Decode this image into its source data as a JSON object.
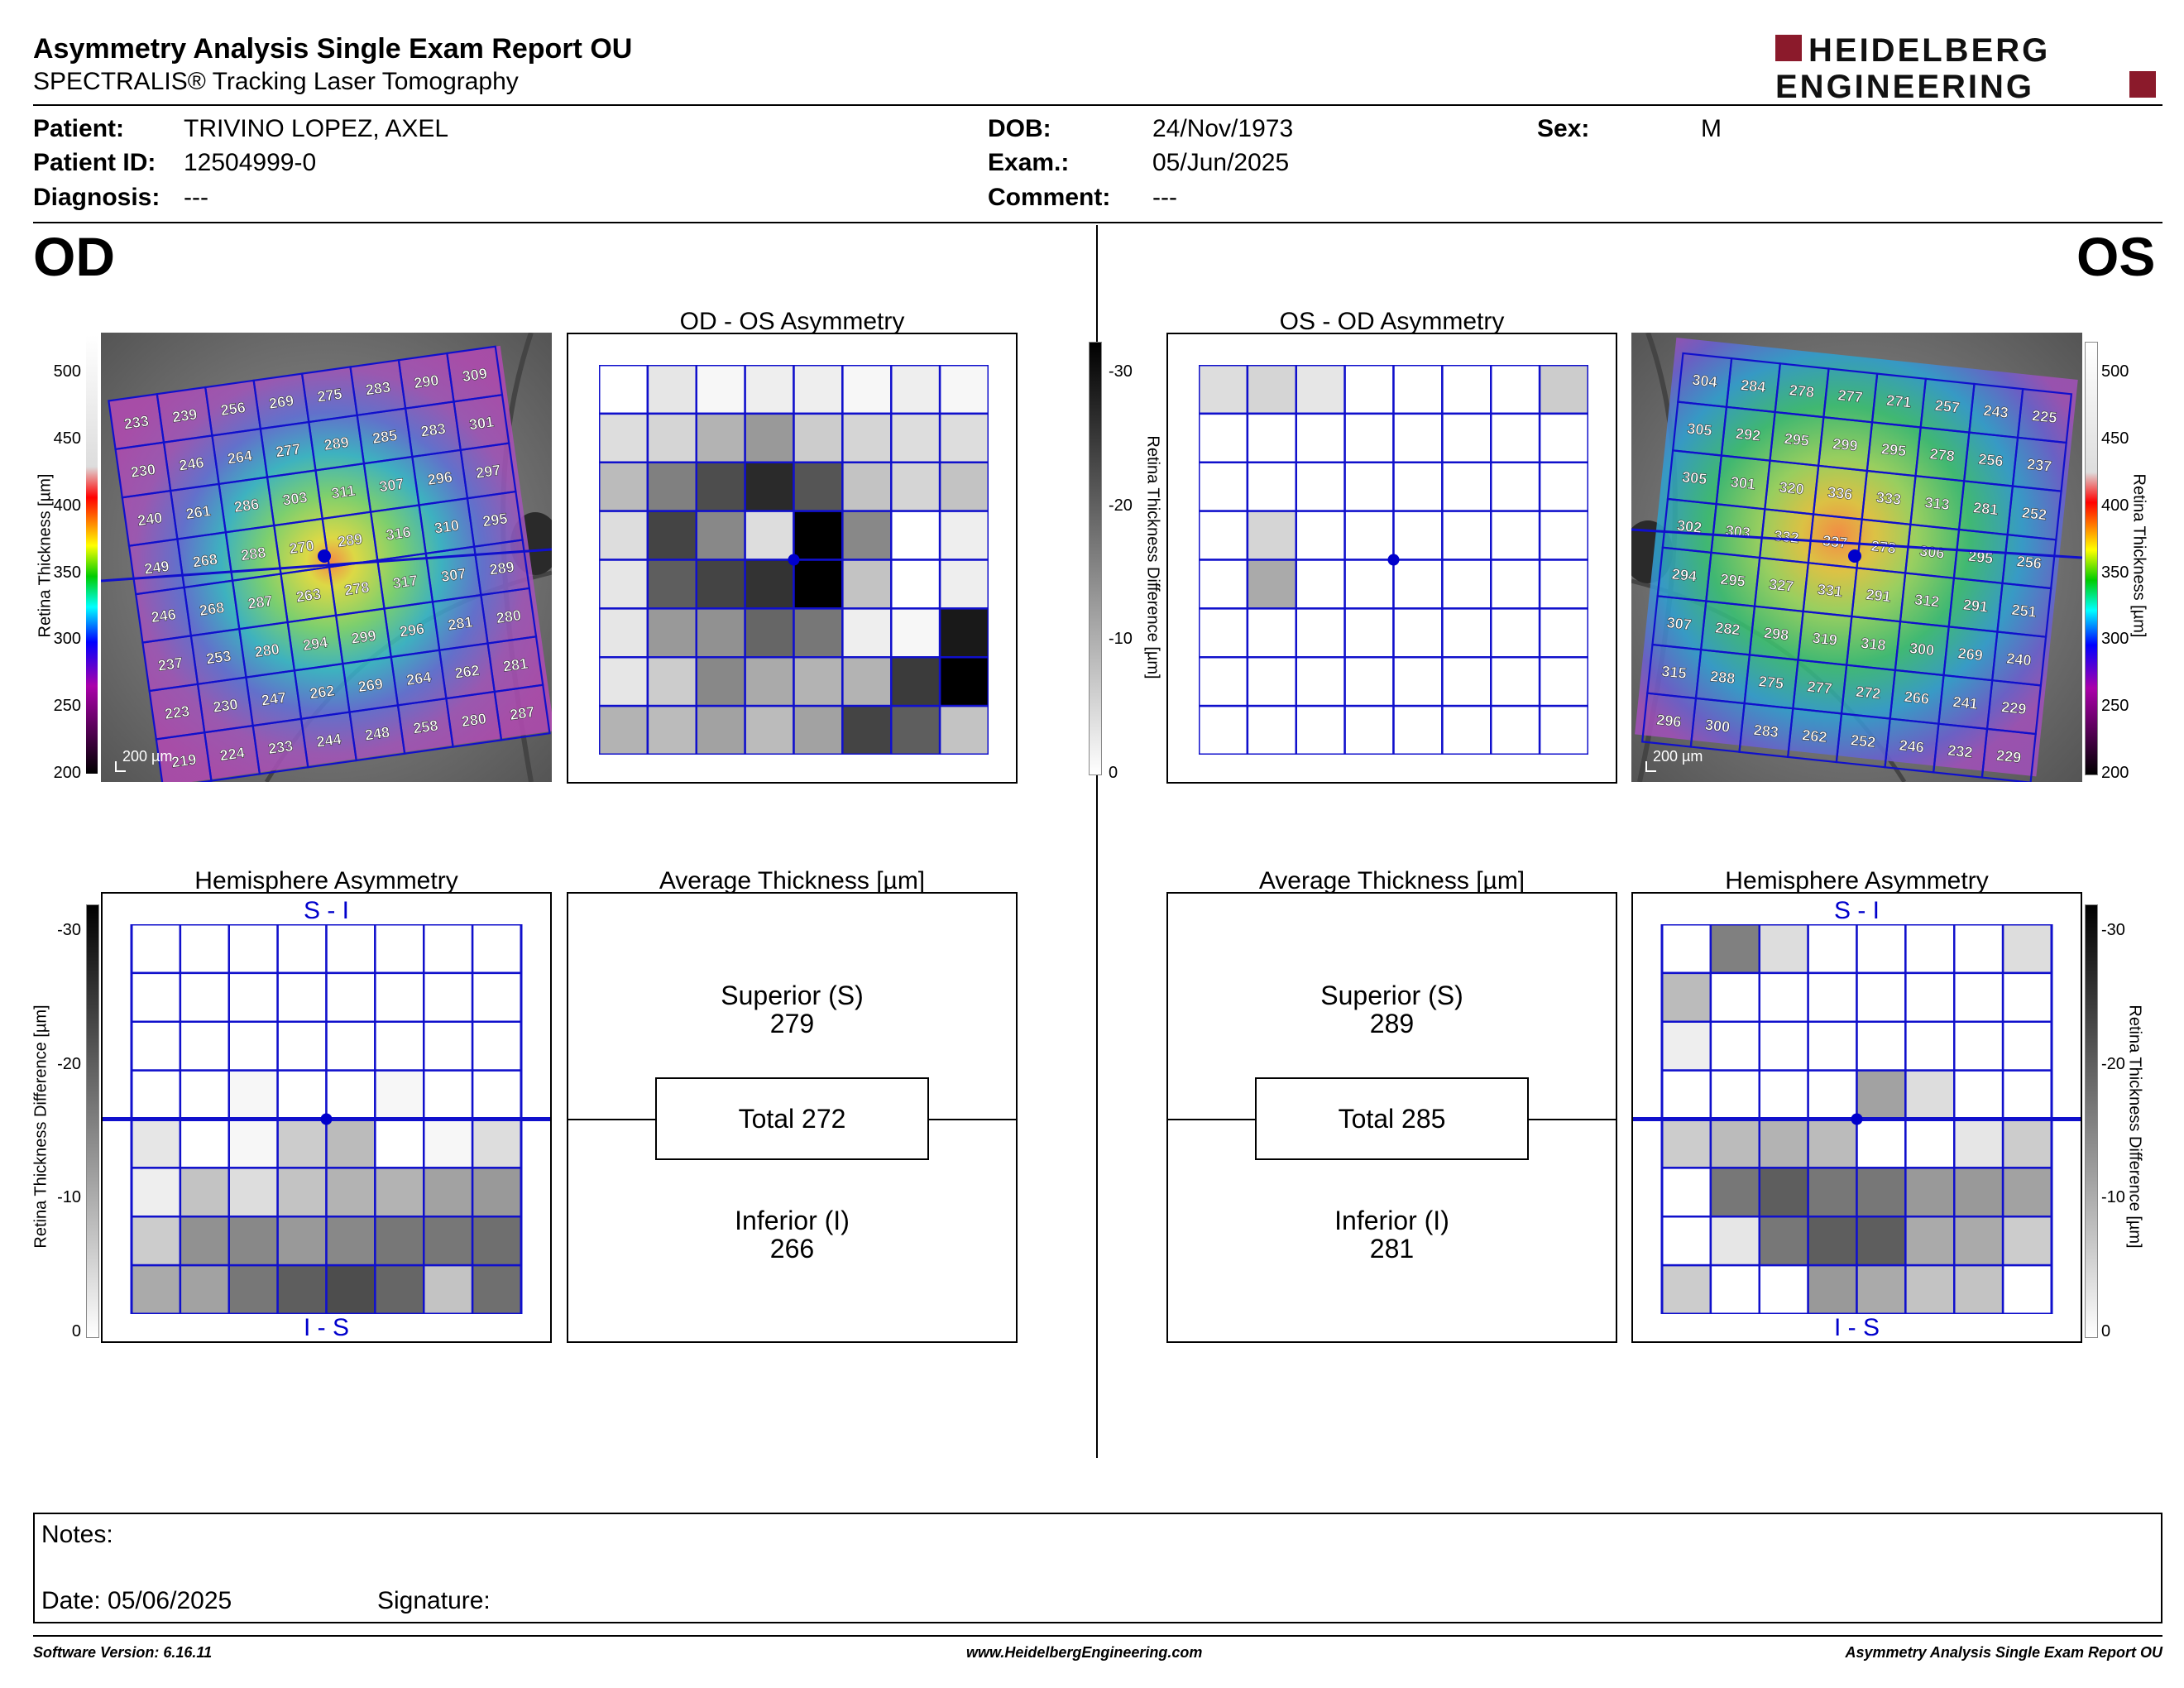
{
  "header": {
    "title": "Asymmetry Analysis Single Exam Report OU",
    "subtitle": "SPECTRALIS® Tracking Laser Tomography",
    "logo_line1": "HEIDELBERG",
    "logo_line2": "ENGINEERING",
    "logo_color": "#8b1a2b"
  },
  "patient": {
    "patient_label": "Patient:",
    "patient_value": "TRIVINO LOPEZ, AXEL",
    "id_label": "Patient ID:",
    "id_value": "12504999-0",
    "diagnosis_label": "Diagnosis:",
    "diagnosis_value": "---",
    "dob_label": "DOB:",
    "dob_value": "24/Nov/1973",
    "exam_label": "Exam.:",
    "exam_value": "05/Jun/2025",
    "comment_label": "Comment:",
    "comment_value": "---",
    "sex_label": "Sex:",
    "sex_value": "M"
  },
  "od": {
    "eye_label": "OD",
    "thickness_scale": [
      "500",
      "450",
      "400",
      "350",
      "300",
      "250",
      "200"
    ],
    "thickness_axis_label": "Retina  Thickness [µm]",
    "scale_bar": "200 µm",
    "thickness_grid": [
      [
        233,
        239,
        256,
        269,
        275,
        283,
        290,
        309
      ],
      [
        230,
        246,
        264,
        277,
        289,
        285,
        283,
        301
      ],
      [
        240,
        261,
        286,
        303,
        311,
        307,
        296,
        297
      ],
      [
        249,
        268,
        288,
        270,
        289,
        316,
        310,
        295
      ],
      [
        246,
        268,
        287,
        263,
        278,
        317,
        307,
        289
      ],
      [
        237,
        253,
        280,
        294,
        299,
        296,
        281,
        280
      ],
      [
        223,
        230,
        247,
        262,
        269,
        264,
        262,
        281
      ],
      [
        219,
        224,
        233,
        244,
        248,
        258,
        280,
        287
      ]
    ],
    "asym_title": "OD - OS Asymmetry",
    "asym_grid": [
      [
        0,
        3,
        1,
        2,
        2,
        1,
        2,
        1
      ],
      [
        4,
        5,
        9,
        12,
        6,
        5,
        4,
        4
      ],
      [
        8,
        15,
        21,
        25,
        20,
        7,
        5,
        7
      ],
      [
        4,
        22,
        14,
        4,
        30,
        14,
        0,
        2
      ],
      [
        3,
        19,
        22,
        24,
        30,
        7,
        0,
        2
      ],
      [
        3,
        12,
        13,
        18,
        16,
        2,
        1,
        27
      ],
      [
        3,
        6,
        14,
        10,
        9,
        9,
        23,
        30
      ],
      [
        9,
        8,
        11,
        8,
        11,
        22,
        19,
        7
      ]
    ],
    "hemi_title": "Hemisphere Asymmetry",
    "hemi_top": "S - I",
    "hemi_bottom": "I - S",
    "hemi_grid": [
      [
        0,
        0,
        0,
        0,
        0,
        0,
        0,
        0
      ],
      [
        0,
        0,
        0,
        0,
        0,
        0,
        0,
        0
      ],
      [
        0,
        0,
        0,
        0,
        0,
        0,
        0,
        0
      ],
      [
        0,
        0,
        1,
        0,
        0,
        1,
        0,
        0
      ],
      [
        3,
        0,
        1,
        6,
        8,
        0,
        1,
        4
      ],
      [
        2,
        7,
        4,
        7,
        9,
        9,
        11,
        12
      ],
      [
        6,
        13,
        14,
        12,
        14,
        16,
        16,
        17
      ],
      [
        10,
        11,
        16,
        19,
        21,
        18,
        7,
        17
      ]
    ],
    "avg_title": "Average Thickness [µm]",
    "superior_label": "Superior (S)",
    "superior_value": "279",
    "total_label": "Total 272",
    "inferior_label": "Inferior (I)",
    "inferior_value": "266"
  },
  "os": {
    "eye_label": "OS",
    "thickness_grid": [
      [
        304,
        284,
        278,
        277,
        271,
        257,
        243,
        225
      ],
      [
        305,
        292,
        295,
        299,
        295,
        278,
        256,
        237
      ],
      [
        305,
        301,
        320,
        336,
        333,
        313,
        281,
        252
      ],
      [
        302,
        303,
        332,
        337,
        278,
        306,
        295,
        256
      ],
      [
        294,
        295,
        327,
        331,
        291,
        312,
        291,
        251
      ],
      [
        307,
        282,
        298,
        319,
        318,
        300,
        269,
        240
      ],
      [
        315,
        288,
        275,
        277,
        272,
        266,
        241,
        229
      ],
      [
        296,
        300,
        283,
        262,
        252,
        246,
        232,
        229
      ]
    ],
    "asym_title": "OS - OD Asymmetry",
    "asym_grid": [
      [
        4,
        5,
        3,
        0,
        0,
        0,
        0,
        6
      ],
      [
        0,
        0,
        0,
        0,
        0,
        0,
        0,
        0
      ],
      [
        0,
        0,
        0,
        0,
        0,
        0,
        0,
        0
      ],
      [
        0,
        5,
        0,
        0,
        0,
        0,
        0,
        0
      ],
      [
        0,
        10,
        0,
        0,
        0,
        0,
        0,
        0
      ],
      [
        0,
        0,
        0,
        0,
        0,
        0,
        0,
        0
      ],
      [
        0,
        0,
        0,
        0,
        0,
        0,
        0,
        0
      ],
      [
        0,
        0,
        0,
        0,
        0,
        0,
        0,
        0
      ]
    ],
    "hemi_title": "Hemisphere Asymmetry",
    "hemi_top": "S - I",
    "hemi_bottom": "I - S",
    "hemi_grid": [
      [
        0,
        15,
        4,
        0,
        0,
        0,
        0,
        4
      ],
      [
        8,
        0,
        0,
        0,
        0,
        0,
        0,
        0
      ],
      [
        2,
        0,
        0,
        0,
        0,
        0,
        0,
        0
      ],
      [
        0,
        0,
        0,
        0,
        11,
        4,
        0,
        0
      ],
      [
        6,
        8,
        9,
        8,
        0,
        0,
        3,
        6
      ],
      [
        0,
        16,
        19,
        16,
        16,
        12,
        12,
        11
      ],
      [
        0,
        3,
        16,
        19,
        19,
        10,
        10,
        6
      ],
      [
        6,
        0,
        0,
        12,
        10,
        7,
        7,
        0
      ]
    ],
    "avg_title": "Average Thickness [µm]",
    "superior_label": "Superior (S)",
    "superior_value": "289",
    "total_label": "Total 285",
    "inferior_label": "Inferior (I)",
    "inferior_value": "281"
  },
  "diff_scale": [
    "-30",
    "-20",
    "-10",
    "0"
  ],
  "diff_axis_label": "Retina Thickness Difference [µm]",
  "notes": {
    "notes_label": "Notes:",
    "date_label": "Date: 05/06/2025",
    "signature_label": "Signature:"
  },
  "footer": {
    "software": "Software Version: 6.16.11",
    "website": "www.HeidelbergEngineering.com",
    "report": "Asymmetry Analysis Single Exam Report OU"
  }
}
